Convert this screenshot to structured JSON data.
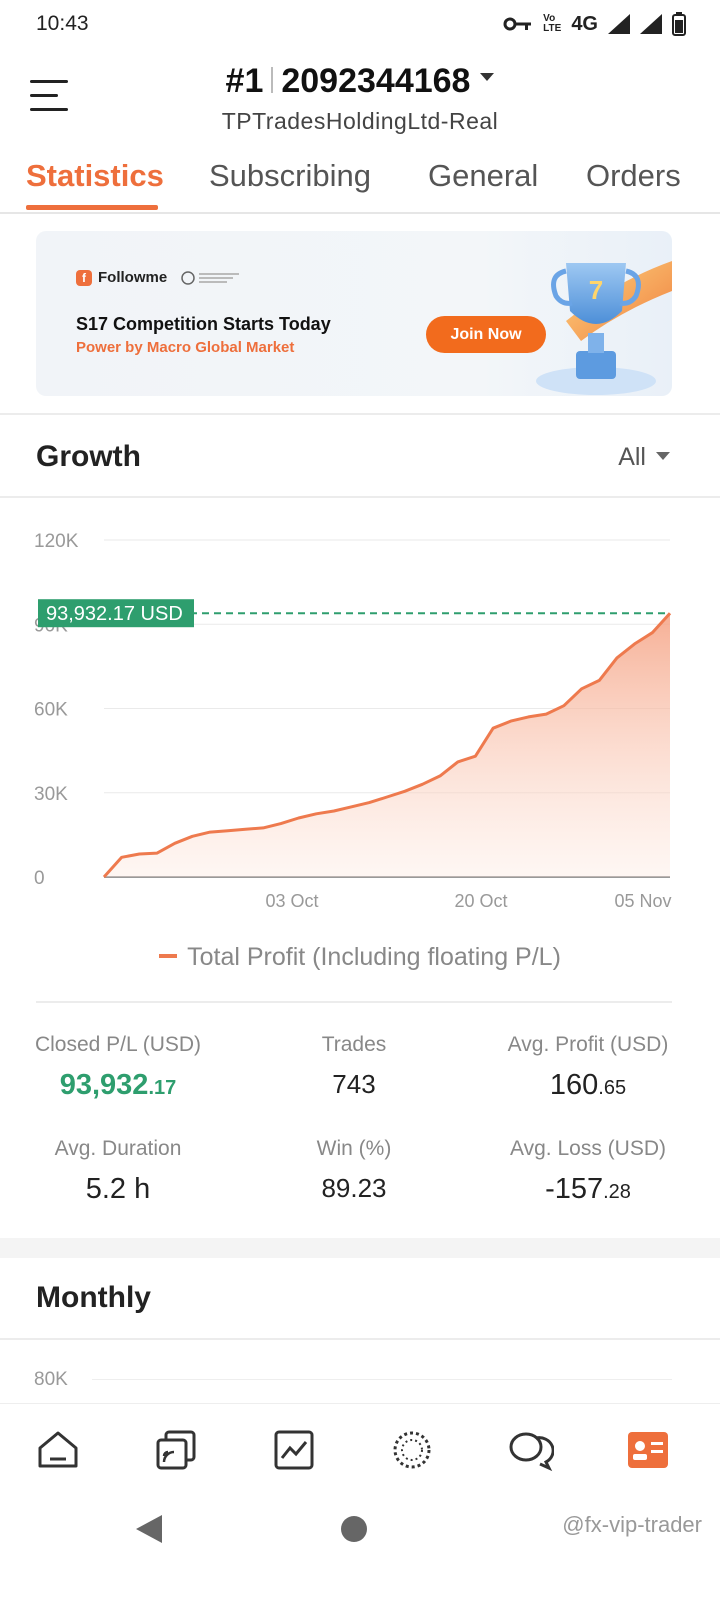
{
  "status_bar": {
    "time": "10:43",
    "network": "4G"
  },
  "header": {
    "rank": "#1",
    "account_number": "2092344168",
    "server": "TPTradesHoldingLtd-Real"
  },
  "tabs": [
    {
      "label": "Statistics",
      "active": true
    },
    {
      "label": "Subscribing",
      "active": false
    },
    {
      "label": "General",
      "active": false
    },
    {
      "label": "Orders",
      "active": false
    }
  ],
  "banner": {
    "brand": "Followme",
    "title": "S17 Competition Starts Today",
    "subtitle": "Power by Macro Global Market",
    "button_label": "Join Now"
  },
  "growth": {
    "title": "Growth",
    "range_label": "All",
    "current_value_label": "93,932.17 USD",
    "legend_label": "Total Profit (Including floating P/L)"
  },
  "chart_data": {
    "type": "area",
    "y_ticks": [
      "120K",
      "90K",
      "60K",
      "30K",
      "0"
    ],
    "x_ticks": [
      "03 Oct",
      "20 Oct",
      "05 Nov"
    ],
    "ylim": [
      0,
      120000
    ],
    "series": [
      {
        "name": "Total Profit (Including floating P/L)",
        "color": "#ee7a4e",
        "values": [
          0,
          7000,
          8200,
          8500,
          12000,
          14500,
          16000,
          16500,
          17000,
          17500,
          19000,
          21000,
          22500,
          23500,
          25000,
          26500,
          28500,
          30500,
          33000,
          36000,
          41000,
          43000,
          53000,
          55500,
          57000,
          58000,
          61000,
          67000,
          70000,
          78000,
          83000,
          87000,
          93932.17
        ]
      }
    ],
    "reference_line": 93932.17
  },
  "stats": {
    "closed_pl": {
      "label": "Closed P/L (USD)",
      "int": "93,932",
      "dec": ".17"
    },
    "trades": {
      "label": "Trades",
      "value": "743"
    },
    "avg_profit": {
      "label": "Avg. Profit (USD)",
      "int": "160",
      "dec": ".65"
    },
    "avg_duration": {
      "label": "Avg. Duration",
      "value": "5.2 h"
    },
    "win": {
      "label": "Win (%)",
      "value": "89.23"
    },
    "avg_loss": {
      "label": "Avg. Loss (USD)",
      "int": "-157",
      "dec": ".28"
    }
  },
  "monthly": {
    "title": "Monthly",
    "first_tick": "80K"
  },
  "bottom_nav": {
    "items": [
      "home-icon",
      "copy-icon",
      "chart-icon",
      "discover-icon",
      "chat-icon",
      "profile-icon"
    ],
    "active_color": "#ee6f3c"
  },
  "watermark": "@fx-vip-trader"
}
